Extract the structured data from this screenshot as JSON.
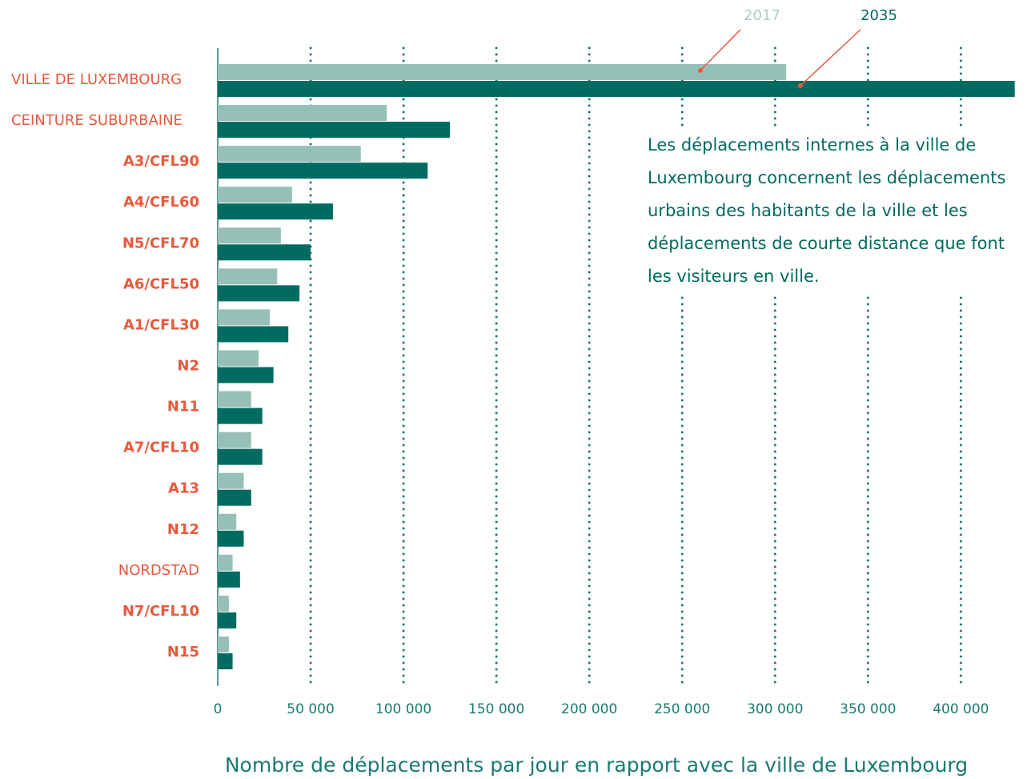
{
  "chart_data": {
    "type": "bar",
    "orientation": "horizontal",
    "x_label": "Nombre de déplacements par jour en rapport avec la ville de Luxembourg",
    "annotation": [
      "Les déplacements internes à la ville de",
      "Luxembourg concernent les déplacements",
      "urbains des habitants de la ville et les",
      "déplacements de courte distance que font",
      "les visiteurs en ville."
    ],
    "categories": [
      "VILLE DE LUXEMBOURG",
      "CEINTURE SUBURBAINE",
      "A3/CFL90",
      "A4/CFL60",
      "N5/CFL70",
      "A6/CFL50",
      "A1/CFL30",
      "N2",
      "N11",
      "A7/CFL10",
      "A13",
      "N12",
      "NORDSTAD",
      "N7/CFL10",
      "N15"
    ],
    "series": [
      {
        "name": "2017",
        "color": "#96c0b7",
        "values": [
          306000,
          91000,
          77000,
          40000,
          34000,
          32000,
          28000,
          22000,
          18000,
          18000,
          14000,
          10000,
          8000,
          6000,
          6000
        ]
      },
      {
        "name": "2035",
        "color": "#006b60",
        "values": [
          429000,
          125000,
          113000,
          62000,
          50000,
          44000,
          38000,
          30000,
          24000,
          24000,
          18000,
          14000,
          12000,
          10000,
          8000
        ]
      }
    ],
    "xlim": [
      0,
      430000
    ],
    "xticks": [
      0,
      {
        "value": 50000,
        "label": "50 000"
      },
      {
        "value": 100000,
        "label": "100 000"
      },
      {
        "value": 150000,
        "label": "150 000"
      },
      {
        "value": 200000,
        "label": "200 000"
      },
      {
        "value": 250000,
        "label": "250 000"
      },
      {
        "value": 300000,
        "label": "300 000"
      },
      {
        "value": 350000,
        "label": "350 000"
      },
      {
        "value": 400000,
        "label": "400 000"
      }
    ],
    "grid": true
  }
}
